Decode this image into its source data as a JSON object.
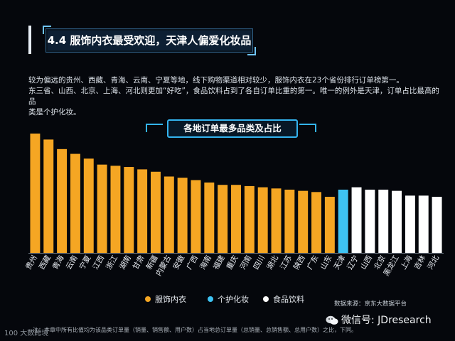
{
  "header": {
    "title": "4.4 服饰内衣最受欢迎，天津人偏爱化妆品"
  },
  "description": {
    "line1": "较为偏远的贵州、西藏、青海、云南、宁夏等地，线下购物渠道相对较少，服饰内衣在23个省份排行订单榜第一。",
    "line2": "东三省、山西、北京、上海、河北则更加“好吃”，食品饮料占到了各自订单比重的第一。唯一的例外是天津，订单占比最高的品",
    "line3": "类是个护化妆。"
  },
  "chart_title": "各地订单最多品类及占比",
  "colors": {
    "clothing": "#f5a623",
    "cosmetics": "#3ec3f3",
    "food": "#ffffff",
    "background": "#05070c",
    "accent": "#34b4f0"
  },
  "chart_data": {
    "type": "bar",
    "title": "各地订单最多品类及占比",
    "categories": [
      "贵州",
      "西藏",
      "青海",
      "云南",
      "宁夏",
      "江西",
      "浙江",
      "湖南",
      "甘肃",
      "新疆",
      "内蒙古",
      "安徽",
      "广西",
      "海南",
      "福建",
      "重庆",
      "河南",
      "四川",
      "湖北",
      "江苏",
      "陕西",
      "广东",
      "山东",
      "天津",
      "辽宁",
      "山西",
      "北京",
      "黑龙江",
      "上海",
      "吉林",
      "河北"
    ],
    "values": [
      100,
      95,
      87,
      83,
      79,
      74,
      73,
      72,
      70,
      68,
      64,
      63,
      61,
      59,
      57,
      57,
      56,
      55,
      54,
      53,
      52,
      51,
      47,
      53,
      55,
      53,
      53,
      52,
      48,
      48,
      47
    ],
    "series_of_category": [
      "clothing",
      "clothing",
      "clothing",
      "clothing",
      "clothing",
      "clothing",
      "clothing",
      "clothing",
      "clothing",
      "clothing",
      "clothing",
      "clothing",
      "clothing",
      "clothing",
      "clothing",
      "clothing",
      "clothing",
      "clothing",
      "clothing",
      "clothing",
      "clothing",
      "clothing",
      "clothing",
      "cosmetics",
      "food",
      "food",
      "food",
      "food",
      "food",
      "food",
      "food"
    ],
    "series": [
      {
        "key": "clothing",
        "name": "服饰内衣"
      },
      {
        "key": "cosmetics",
        "name": "个护化妆"
      },
      {
        "key": "food",
        "name": "食品饮料"
      }
    ],
    "ylim": [
      0,
      100
    ],
    "grid": false,
    "legend_placement": "bottom-center"
  },
  "legend": {
    "clothing": "服饰内衣",
    "cosmetics": "个护化妆",
    "food": "食品饮料"
  },
  "source": "数据来源：京东大数据平台",
  "footnote": "注：本章中所有比值均为该品类订单量（销量、销售额、用户数）占当地总订单量（总销量、总销售额、总用户数）之比，下同。",
  "watermark": {
    "wechat": "微信号: JDresearch",
    "bottom_logo": "100 大数跨境"
  },
  "icons": {
    "wechat": "wechat-icon"
  }
}
